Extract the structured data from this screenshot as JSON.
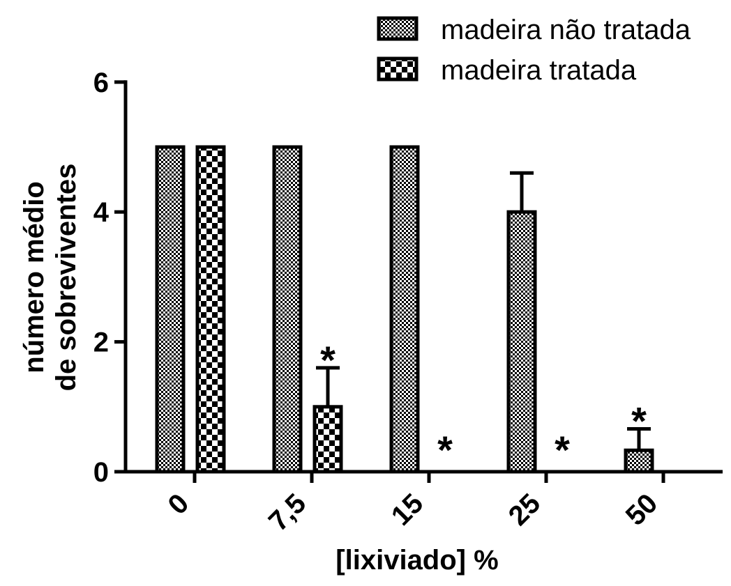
{
  "chart_data": {
    "type": "bar",
    "xlabel": "[lixiviado] %",
    "ylabel_lines": [
      "número médio",
      "de sobreviventes"
    ],
    "categories": [
      "0",
      "7,5",
      "15",
      "25",
      "50"
    ],
    "ylim": [
      0,
      6
    ],
    "yticks": [
      0,
      2,
      4,
      6
    ],
    "grid": false,
    "legend_position": "top-right",
    "series": [
      {
        "name": "madeira não tratada",
        "pattern": "fine-checker",
        "values": [
          5,
          5,
          5,
          4,
          0.33
        ],
        "errors": [
          0,
          0,
          0,
          0.6,
          0.33
        ]
      },
      {
        "name": "madeira tratada",
        "pattern": "coarse-checker",
        "values": [
          5,
          1,
          0,
          0,
          0
        ],
        "errors": [
          0,
          0.6,
          0,
          0,
          0
        ]
      }
    ],
    "significance_marks": [
      {
        "category": "7,5",
        "series": 1,
        "label": "*"
      },
      {
        "category": "15",
        "series": 1,
        "label": "*"
      },
      {
        "category": "25",
        "series": 1,
        "label": "*"
      },
      {
        "category": "50",
        "series": 0,
        "label": "*"
      }
    ]
  }
}
